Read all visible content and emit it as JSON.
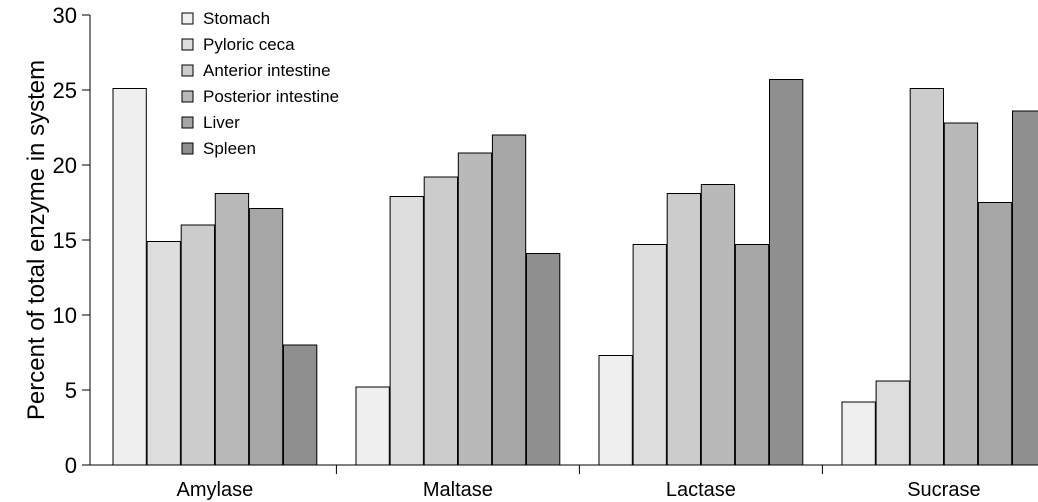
{
  "chart_data": {
    "type": "bar",
    "title": "",
    "xlabel": "",
    "ylabel": "Percent of total enzyme in system",
    "ylim": [
      0,
      30
    ],
    "yticks": [
      0,
      5,
      10,
      15,
      20,
      25,
      30
    ],
    "grid": false,
    "legend_position": "top-left",
    "categories": [
      "Amylase",
      "Maltase",
      "Lactase",
      "Sucrase"
    ],
    "series": [
      {
        "name": "Stomach",
        "color": "#efefef",
        "values": [
          25.1,
          5.2,
          7.3,
          4.2
        ]
      },
      {
        "name": "Pyloric ceca",
        "color": "#dddddd",
        "values": [
          14.9,
          17.9,
          14.7,
          5.6
        ]
      },
      {
        "name": "Anterior intestine",
        "color": "#cccccc",
        "values": [
          16.0,
          19.2,
          18.1,
          25.1
        ]
      },
      {
        "name": "Posterior intestine",
        "color": "#b9b9b9",
        "values": [
          18.1,
          20.8,
          18.7,
          22.8
        ]
      },
      {
        "name": "Liver",
        "color": "#a6a6a6",
        "values": [
          17.1,
          22.0,
          14.7,
          17.5
        ]
      },
      {
        "name": "Spleen",
        "color": "#8f8f8f",
        "values": [
          8.0,
          14.1,
          25.7,
          23.6
        ]
      }
    ]
  }
}
